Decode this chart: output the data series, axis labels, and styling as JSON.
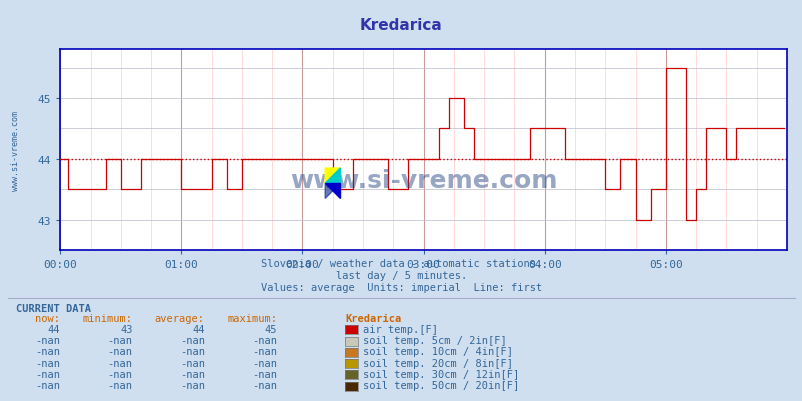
{
  "title": "Kredarica",
  "title_color": "#3333aa",
  "bg_color": "#d0dff0",
  "plot_bg_color": "#ffffff",
  "line_color": "#cc0000",
  "dotted_line_color": "#cc0000",
  "grid_minor_color": "#ffcccc",
  "grid_major_color": "#cc9999",
  "grid_h_color": "#bbbbcc",
  "axis_color": "#0000bb",
  "text_color": "#336699",
  "orange_color": "#cc6600",
  "watermark": "www.si-vreme.com",
  "watermark_color": "#1a3a7a",
  "subtitle1": "Slovenia / weather data - automatic stations.",
  "subtitle2": "last day / 5 minutes.",
  "subtitle3": "Values: average  Units: imperial  Line: first",
  "xlim": [
    0,
    288
  ],
  "ylim": [
    42.5,
    45.8
  ],
  "yticks": [
    43,
    44,
    45
  ],
  "xtick_labels": [
    "00:00",
    "01:00",
    "02:00",
    "03:00",
    "04:00",
    "05:00"
  ],
  "xtick_positions": [
    0,
    48,
    96,
    144,
    192,
    240
  ],
  "average_line": 44.0,
  "current_data": {
    "headers": [
      "now:",
      "minimum:",
      "average:",
      "maximum:",
      "Kredarica"
    ],
    "rows": [
      {
        "now": "44",
        "min": "43",
        "avg": "44",
        "max": "45",
        "color": "#cc0000",
        "label": "air temp.[F]"
      },
      {
        "now": "-nan",
        "min": "-nan",
        "avg": "-nan",
        "max": "-nan",
        "color": "#c8c8b8",
        "label": "soil temp. 5cm / 2in[F]"
      },
      {
        "now": "-nan",
        "min": "-nan",
        "avg": "-nan",
        "max": "-nan",
        "color": "#c87820",
        "label": "soil temp. 10cm / 4in[F]"
      },
      {
        "now": "-nan",
        "min": "-nan",
        "avg": "-nan",
        "max": "-nan",
        "color": "#b89600",
        "label": "soil temp. 20cm / 8in[F]"
      },
      {
        "now": "-nan",
        "min": "-nan",
        "avg": "-nan",
        "max": "-nan",
        "color": "#646428",
        "label": "soil temp. 30cm / 12in[F]"
      },
      {
        "now": "-nan",
        "min": "-nan",
        "avg": "-nan",
        "max": "-nan",
        "color": "#4a2800",
        "label": "soil temp. 50cm / 20in[F]"
      }
    ]
  }
}
